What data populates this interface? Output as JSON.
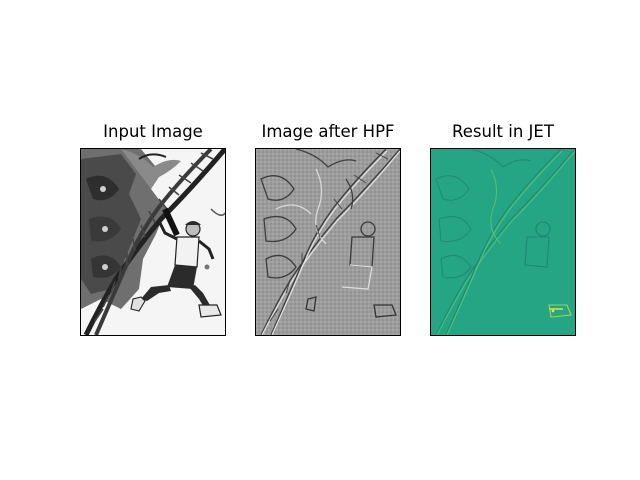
{
  "figure": {
    "panels": [
      {
        "title": "Input Image"
      },
      {
        "title": "Image after HPF"
      },
      {
        "title": "Result in JET"
      }
    ]
  }
}
